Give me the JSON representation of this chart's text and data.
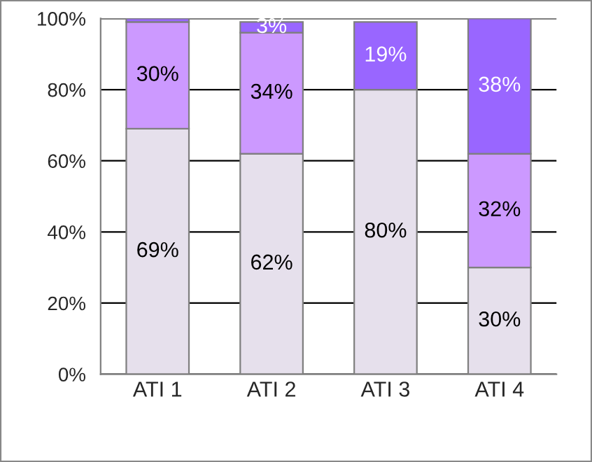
{
  "chart_data": {
    "type": "bar",
    "stacked": true,
    "categories": [
      "ATI 1",
      "ATI 2",
      "ATI 3",
      "ATI 4"
    ],
    "series": [
      {
        "color": "#e6e0ec",
        "values": [
          69,
          62,
          80,
          30
        ],
        "value_labels": [
          "69%",
          "62%",
          "80%",
          "30%"
        ]
      },
      {
        "color": "#cc99ff",
        "values": [
          30,
          34,
          null,
          32
        ],
        "value_labels": [
          "30%",
          "34%",
          null,
          "32%"
        ]
      },
      {
        "color": "#9966ff",
        "values": [
          1,
          3,
          19,
          38
        ],
        "value_labels": [
          null,
          "3%",
          "19%",
          "38%"
        ]
      }
    ],
    "ylim": [
      0,
      100
    ],
    "yticks": [
      {
        "value": 0,
        "label": "0%"
      },
      {
        "value": 20,
        "label": "20%"
      },
      {
        "value": 40,
        "label": "40%"
      },
      {
        "value": 60,
        "label": "60%"
      },
      {
        "value": 80,
        "label": "80%"
      },
      {
        "value": 100,
        "label": "100%"
      }
    ],
    "grid": "y",
    "legend": false
  }
}
